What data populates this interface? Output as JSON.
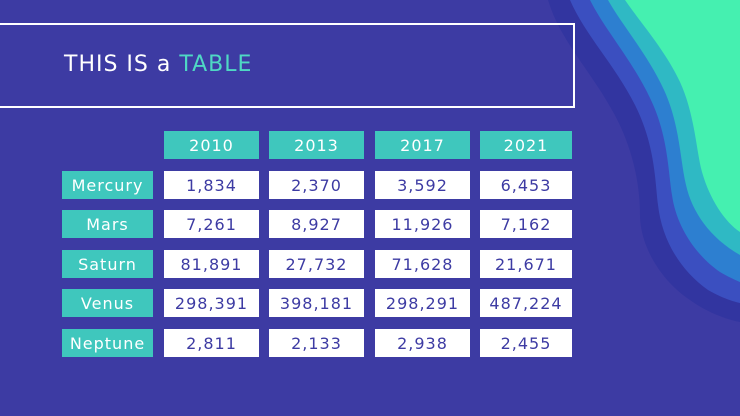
{
  "slide": {
    "title_part1": "THIS IS a",
    "title_part2": "TABLE"
  },
  "colors": {
    "background": "#3d3ba3",
    "header_fill": "#3fc7bd",
    "accent": "#4fd8c4",
    "cell_fill": "#ffffff",
    "cell_text": "#3d3ba3"
  },
  "table": {
    "columns": [
      "2010",
      "2013",
      "2017",
      "2021"
    ],
    "rows": [
      {
        "label": "Mercury",
        "values": [
          "1,834",
          "2,370",
          "3,592",
          "6,453"
        ]
      },
      {
        "label": "Mars",
        "values": [
          "7,261",
          "8,927",
          "11,926",
          "7,162"
        ]
      },
      {
        "label": "Saturn",
        "values": [
          "81,891",
          "27,732",
          "71,628",
          "21,671"
        ]
      },
      {
        "label": "Venus",
        "values": [
          "298,391",
          "398,181",
          "298,291",
          "487,224"
        ]
      },
      {
        "label": "Neptune",
        "values": [
          "2,811",
          "2,133",
          "2,938",
          "2,455"
        ]
      }
    ]
  }
}
